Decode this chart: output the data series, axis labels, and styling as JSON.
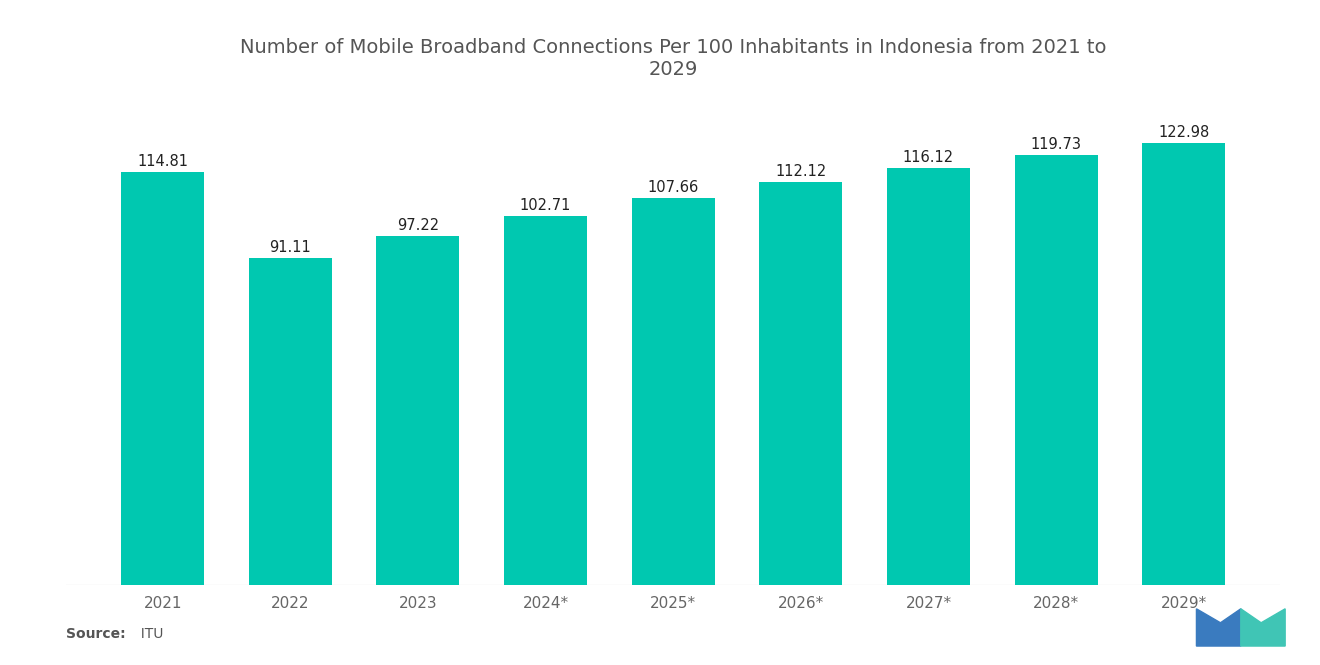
{
  "title": "Number of Mobile Broadband Connections Per 100 Inhabitants in Indonesia from 2021 to\n2029",
  "categories": [
    "2021",
    "2022",
    "2023",
    "2024*",
    "2025*",
    "2026*",
    "2027*",
    "2028*",
    "2029*"
  ],
  "values": [
    114.81,
    91.11,
    97.22,
    102.71,
    107.66,
    112.12,
    116.12,
    119.73,
    122.98
  ],
  "bar_color": "#00C8B0",
  "background_color": "#ffffff",
  "title_fontsize": 14,
  "label_fontsize": 10.5,
  "tick_fontsize": 11,
  "source_label": "Source:",
  "source_value": "  ITU",
  "ylim": [
    0,
    135
  ],
  "bar_width": 0.65
}
